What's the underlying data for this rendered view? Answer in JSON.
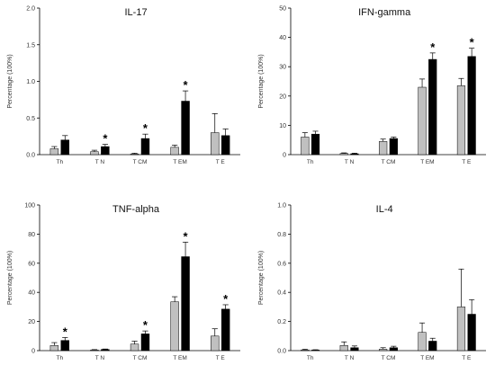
{
  "chart_data": [
    {
      "type": "bar",
      "title": "IL-17",
      "ylabel": "Percentage (100%)",
      "xlabel": "",
      "categories": [
        "Th",
        "T N",
        "T CM",
        "T EM",
        "T E"
      ],
      "ylim": [
        0,
        2.0
      ],
      "yticks": [
        "0.0",
        "0.5",
        "1.0",
        "1.5",
        "2.0"
      ],
      "series": [
        {
          "color": "#c0c0c0",
          "values": [
            0.08,
            0.04,
            0.01,
            0.1,
            0.3
          ],
          "errors": [
            0.03,
            0.02,
            0.01,
            0.03,
            0.26
          ]
        },
        {
          "color": "#000000",
          "values": [
            0.2,
            0.11,
            0.22,
            0.73,
            0.26
          ],
          "errors": [
            0.06,
            0.03,
            0.06,
            0.14,
            0.09
          ]
        }
      ],
      "significant": [
        false,
        true,
        true,
        true,
        false
      ],
      "star": "*"
    },
    {
      "type": "bar",
      "title": "IFN-gamma",
      "ylabel": "Percentage (100%)",
      "xlabel": "",
      "categories": [
        "Th",
        "T N",
        "T CM",
        "T EM",
        "T E"
      ],
      "ylim": [
        0,
        50
      ],
      "yticks": [
        "0",
        "10",
        "20",
        "30",
        "40",
        "50"
      ],
      "series": [
        {
          "color": "#c0c0c0",
          "values": [
            6,
            0.4,
            4.5,
            23,
            23.5
          ],
          "errors": [
            1.5,
            0.2,
            0.8,
            2.8,
            2.5
          ]
        },
        {
          "color": "#000000",
          "values": [
            7,
            0.3,
            5.5,
            32.5,
            33.5
          ],
          "errors": [
            1.0,
            0.2,
            0.5,
            2.2,
            2.8
          ]
        }
      ],
      "significant": [
        false,
        false,
        false,
        true,
        true
      ],
      "star": "*"
    },
    {
      "type": "bar",
      "title": "TNF-alpha",
      "ylabel": "Percentage (100%)",
      "xlabel": "",
      "categories": [
        "Th",
        "T N",
        "T CM",
        "T EM",
        "T E"
      ],
      "ylim": [
        0,
        100
      ],
      "yticks": [
        "0",
        "20",
        "40",
        "60",
        "80",
        "100"
      ],
      "series": [
        {
          "color": "#c0c0c0",
          "values": [
            3.5,
            0.4,
            4.5,
            33.5,
            10
          ],
          "errors": [
            2,
            0.3,
            2,
            3.5,
            5
          ]
        },
        {
          "color": "#000000",
          "values": [
            7,
            0.8,
            11.5,
            64.5,
            28.5
          ],
          "errors": [
            2,
            0.3,
            2,
            10,
            3
          ]
        }
      ],
      "significant": [
        true,
        false,
        true,
        true,
        true
      ],
      "star": "*"
    },
    {
      "type": "bar",
      "title": "IL-4",
      "ylabel": "Percentage (100%)",
      "xlabel": "",
      "categories": [
        "Th",
        "T N",
        "T CM",
        "T EM",
        "T E"
      ],
      "ylim": [
        0,
        1.0
      ],
      "yticks": [
        "0.0",
        "0.2",
        "0.4",
        "0.6",
        "0.8",
        "1.0"
      ],
      "series": [
        {
          "color": "#c0c0c0",
          "values": [
            0.005,
            0.035,
            0.01,
            0.125,
            0.3
          ],
          "errors": [
            0.004,
            0.025,
            0.01,
            0.065,
            0.26
          ]
        },
        {
          "color": "#000000",
          "values": [
            0.003,
            0.02,
            0.02,
            0.065,
            0.25
          ],
          "errors": [
            0.003,
            0.012,
            0.01,
            0.02,
            0.1
          ]
        }
      ],
      "significant": [
        false,
        false,
        false,
        false,
        false
      ],
      "star": "*"
    }
  ]
}
